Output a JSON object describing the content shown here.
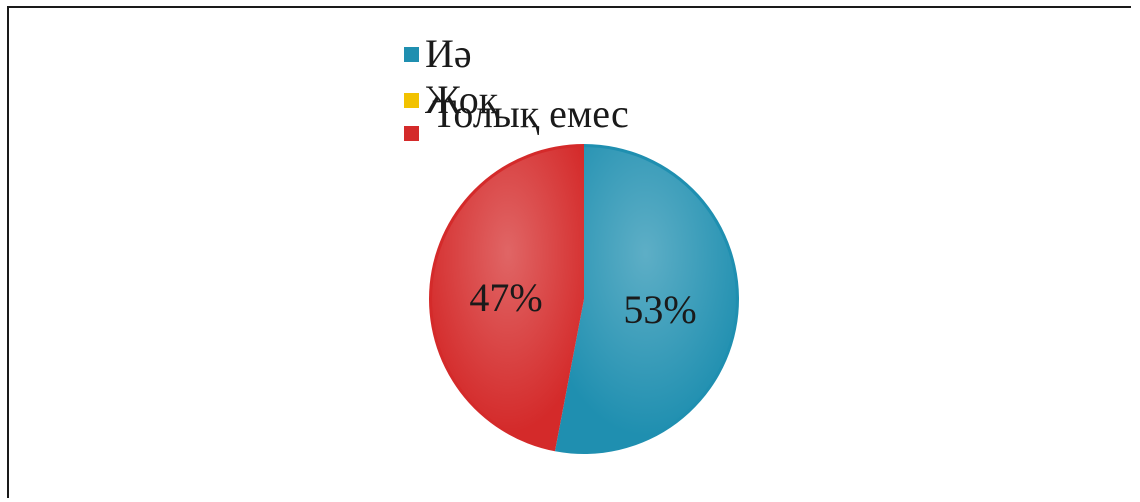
{
  "chart_data": {
    "type": "pie",
    "title": "",
    "legend_position": "top",
    "slices": [
      {
        "label": "Иә",
        "value": 53,
        "color": "#1f8fb0",
        "display": "53%"
      },
      {
        "label": "Жоқ",
        "value": 0,
        "color": "#f2c200",
        "display": ""
      },
      {
        "label": "Толық емес",
        "value": 47,
        "color": "#d42a2a",
        "display": "47%"
      }
    ]
  }
}
